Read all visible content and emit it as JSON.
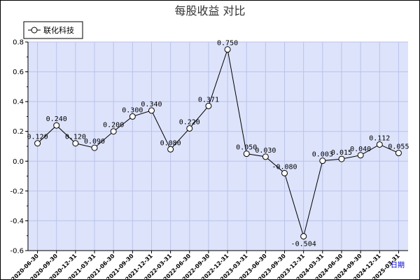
{
  "chart_data": {
    "type": "line",
    "title": "每股收益  对比",
    "xlabel": "日期",
    "ylabel": "",
    "ylim": [
      -0.6,
      0.8
    ],
    "yticks": [
      "-0.6",
      "-0.4",
      "-0.2",
      "0.0",
      "0.2",
      "0.4",
      "0.6",
      "0.8"
    ],
    "grid": true,
    "legend": "top-left",
    "categories": [
      "2020-06-30",
      "2020-09-30",
      "2020-12-31",
      "2021-03-31",
      "2021-06-30",
      "2021-09-30",
      "2021-12-31",
      "2022-03-31",
      "2022-06-30",
      "2022-09-30",
      "2022-12-31",
      "2023-03-31",
      "2023-06-30",
      "2023-09-30",
      "2023-12-31",
      "2024-03-31",
      "2024-06-30",
      "2024-09-30",
      "2024-12-31",
      "2025-03-31"
    ],
    "series": [
      {
        "name": "联化科技",
        "values": [
          0.12,
          0.24,
          0.12,
          0.09,
          0.2,
          0.3,
          0.34,
          0.08,
          0.22,
          0.371,
          0.75,
          0.05,
          0.03,
          -0.08,
          -0.504,
          0.003,
          0.015,
          0.04,
          0.112,
          0.055
        ],
        "labels": [
          "0.120",
          "0.240",
          "0.120",
          "0.090",
          "0.200",
          "0.300",
          "0.340",
          "0.080",
          "0.220",
          "0.371",
          "0.750",
          "0.050",
          "0.030",
          "-0.080",
          "-0.504",
          "0.003",
          "0.015",
          "0.040",
          "0.112",
          "0.055"
        ],
        "color": "#000000"
      }
    ],
    "plot_bg": "#dde3fb",
    "grid_color": "#b9c3ea"
  }
}
